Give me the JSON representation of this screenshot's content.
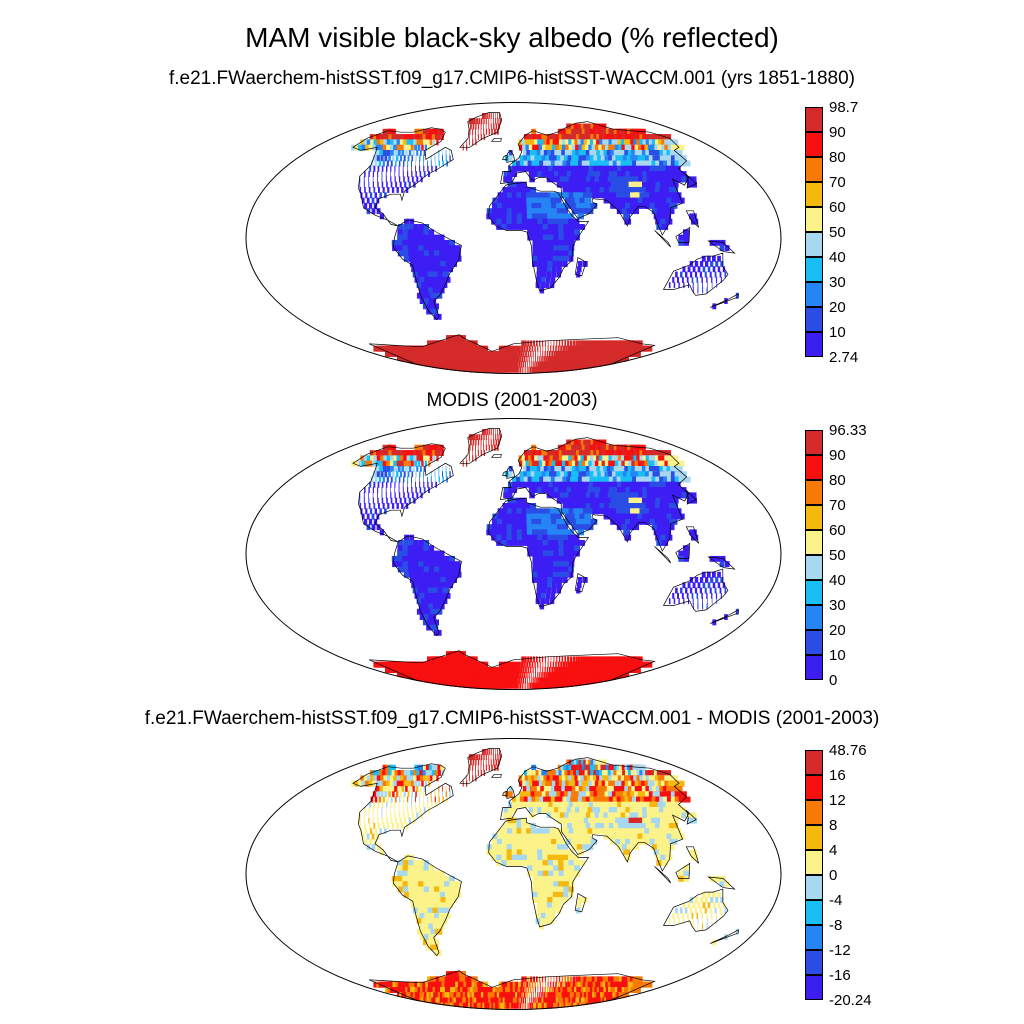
{
  "figure": {
    "title": "MAM visible black-sky albedo (% reflected)"
  },
  "panels": [
    {
      "title": "f.e21.FWaerchem-histSST.f09_g17.CMIP6-histSST-WACCM.001 (yrs 1851-1880)",
      "colorbar": {
        "labels": [
          "98.7",
          "90",
          "80",
          "70",
          "60",
          "50",
          "40",
          "30",
          "20",
          "10",
          "2.74"
        ],
        "colors": [
          "#d42a2a",
          "#f80f0f",
          "#f77a05",
          "#f5b80f",
          "#fbf38a",
          "#a8d7f0",
          "#19bef5",
          "#2585f5",
          "#2a4de6",
          "#3c1ef5"
        ]
      }
    },
    {
      "title": "MODIS (2001-2003)",
      "colorbar": {
        "labels": [
          "96.33",
          "90",
          "80",
          "70",
          "60",
          "50",
          "40",
          "30",
          "20",
          "10",
          "0"
        ],
        "colors": [
          "#d42a2a",
          "#f80f0f",
          "#f77a05",
          "#f5b80f",
          "#fbf38a",
          "#a8d7f0",
          "#19bef5",
          "#2585f5",
          "#2a4de6",
          "#3c1ef5"
        ]
      }
    },
    {
      "title": "f.e21.FWaerchem-histSST.f09_g17.CMIP6-histSST-WACCM.001 - MODIS (2001-2003)",
      "colorbar": {
        "labels": [
          "48.76",
          "16",
          "12",
          "8",
          "4",
          "0",
          "-4",
          "-8",
          "-12",
          "-16",
          "-20.24"
        ],
        "colors": [
          "#d42a2a",
          "#f80f0f",
          "#f77a05",
          "#f5b80f",
          "#fbf38a",
          "#a8d7f0",
          "#19bef5",
          "#2585f5",
          "#2a4de6",
          "#3c1ef5"
        ]
      }
    }
  ]
}
